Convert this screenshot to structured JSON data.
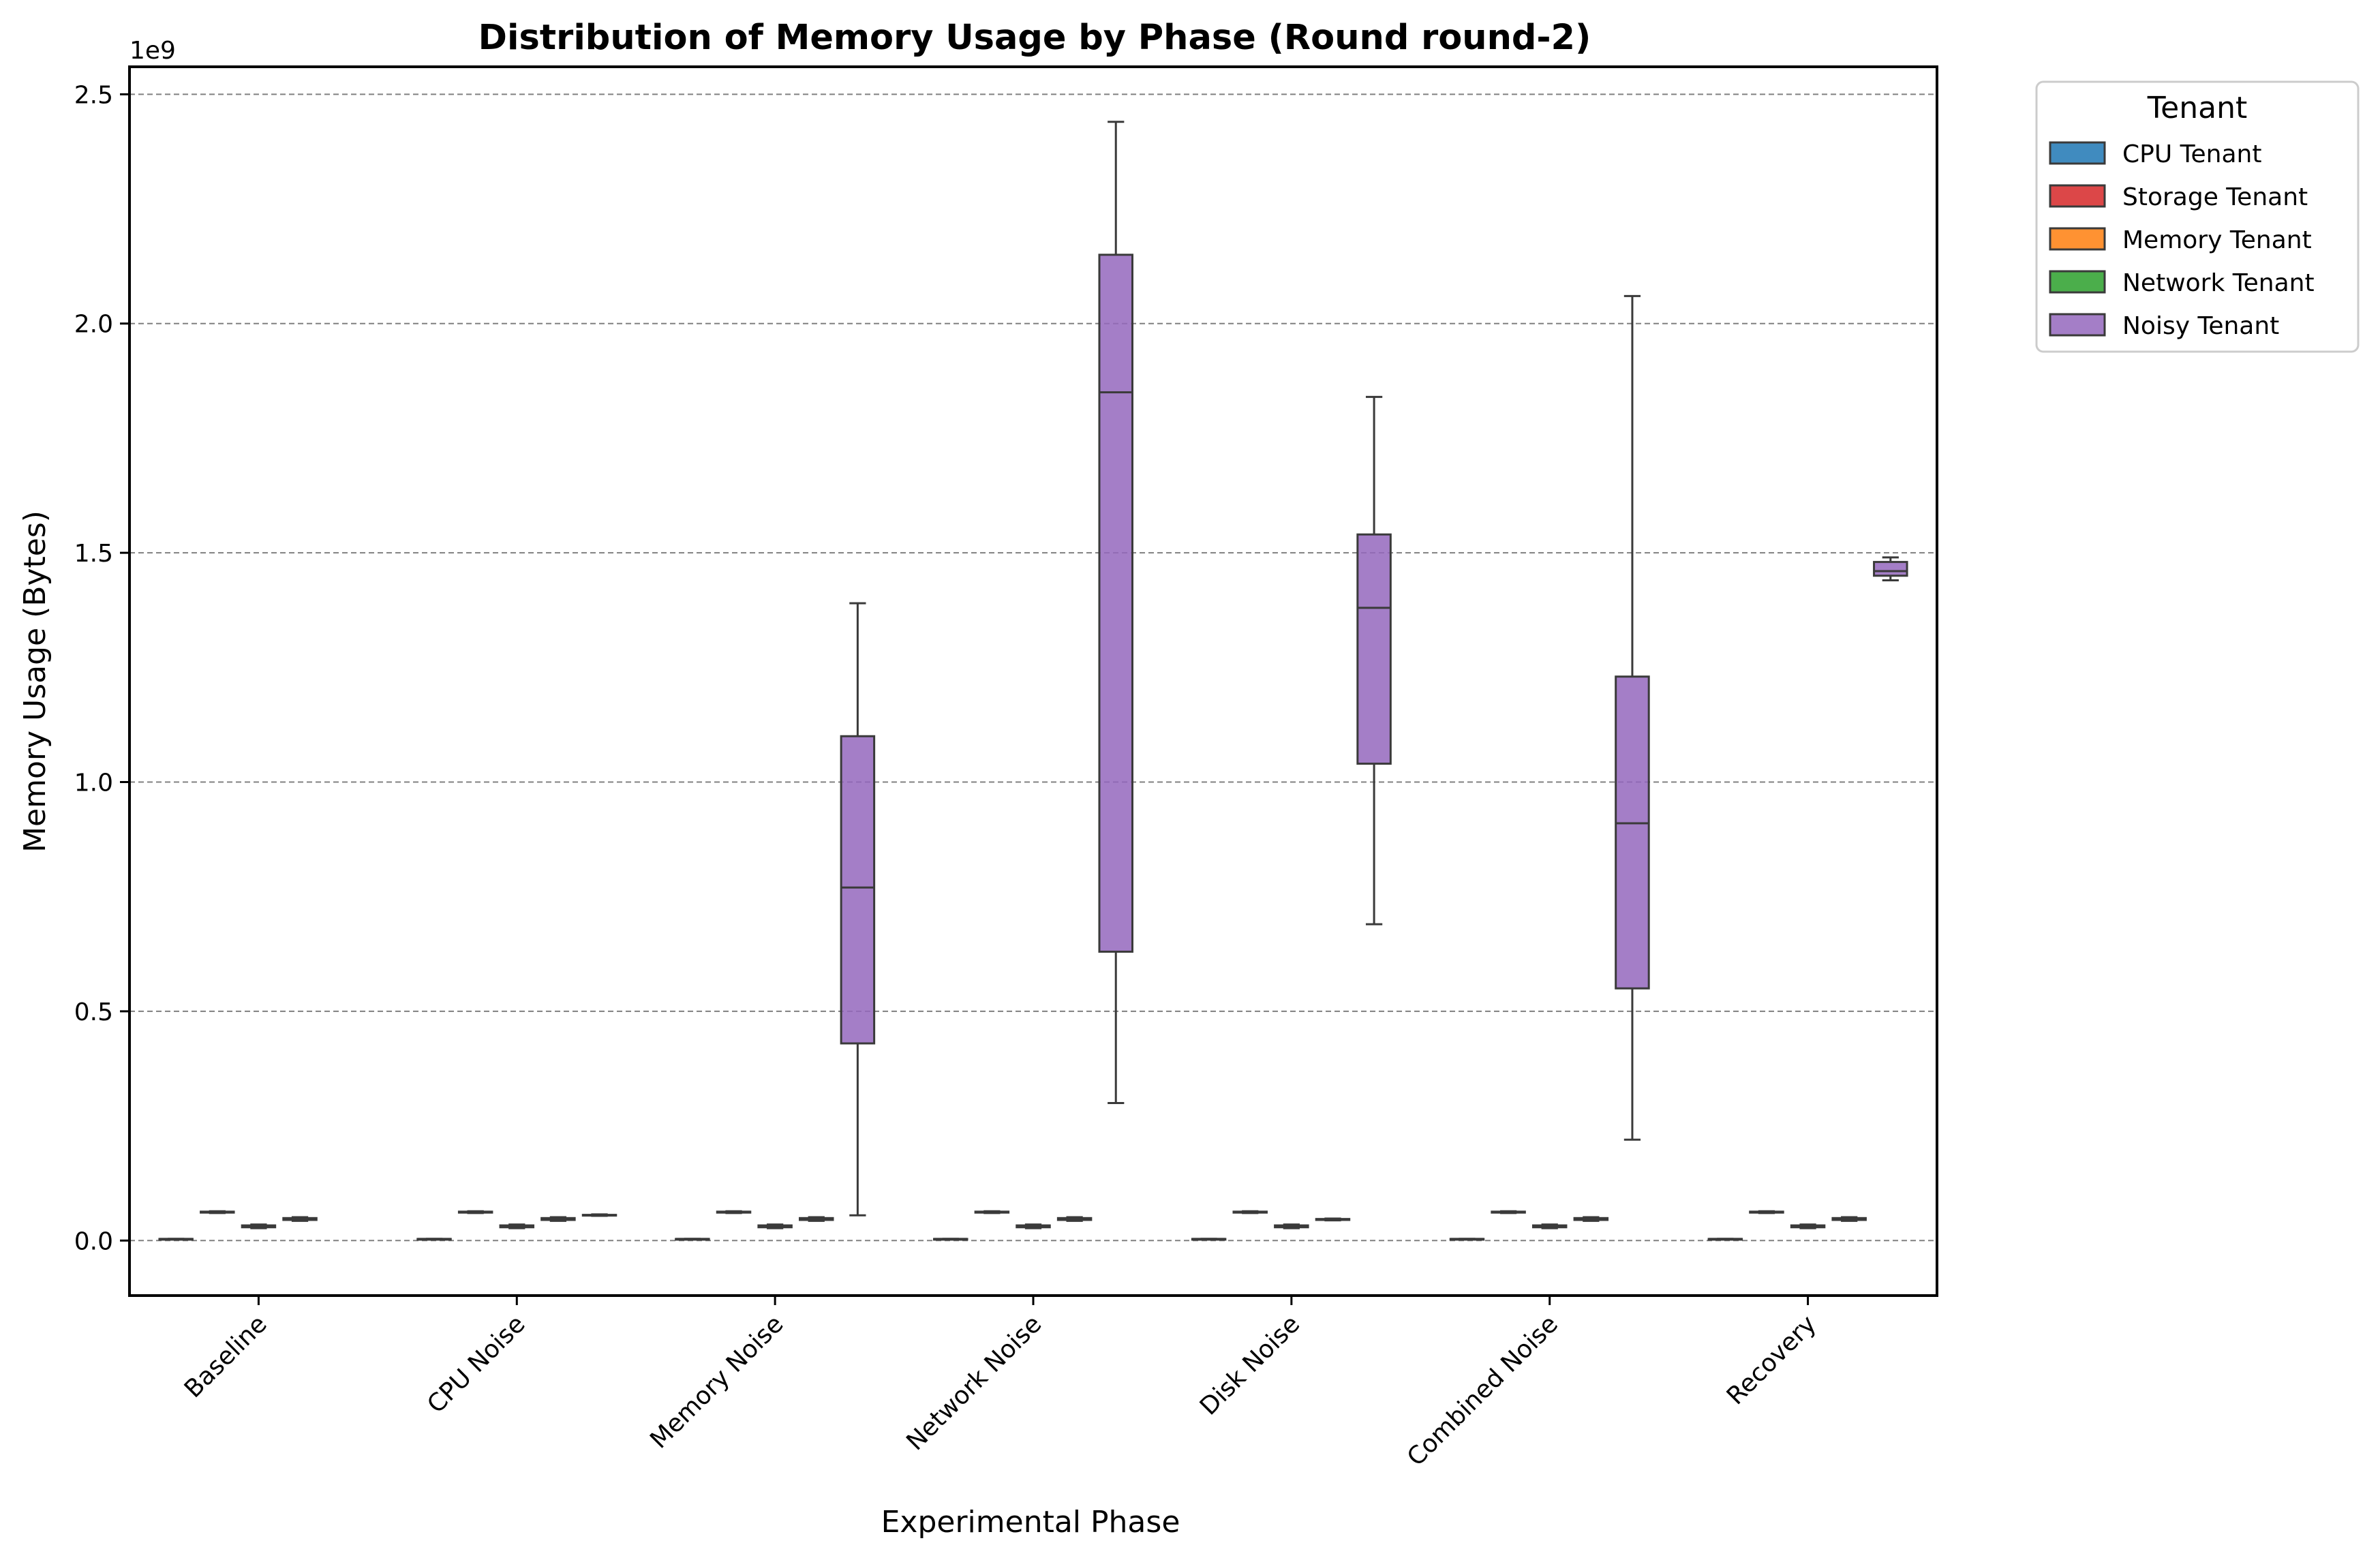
{
  "chart_data": {
    "type": "box",
    "title": "Distribution of Memory Usage by Phase (Round round-2)",
    "xlabel": "Experimental Phase",
    "ylabel": "Memory Usage (Bytes)",
    "y_multiplier_label": "1e9",
    "ylim": [
      -0.12,
      2.56
    ],
    "yticks": [
      0.0,
      0.5,
      1.0,
      1.5,
      2.0,
      2.5
    ],
    "ytick_labels": [
      "0.0",
      "0.5",
      "1.0",
      "1.5",
      "2.0",
      "2.5"
    ],
    "grid": "horizontal dashed",
    "categories": [
      "Baseline",
      "CPU Noise",
      "Memory Noise",
      "Network Noise",
      "Disk Noise",
      "Combined Noise",
      "Recovery"
    ],
    "legend": {
      "title": "Tenant",
      "placement": "outside upper-right"
    },
    "series": [
      {
        "name": "CPU Tenant",
        "color": "#1f77b4",
        "boxes": [
          {
            "whislo": 0.0035,
            "q1": 0.0035,
            "med": 0.0035,
            "q3": 0.0035,
            "whishi": 0.0035
          },
          {
            "whislo": 0.0035,
            "q1": 0.0035,
            "med": 0.0035,
            "q3": 0.0035,
            "whishi": 0.0035
          },
          {
            "whislo": 0.0035,
            "q1": 0.0035,
            "med": 0.0035,
            "q3": 0.0035,
            "whishi": 0.0035
          },
          {
            "whislo": 0.0035,
            "q1": 0.0035,
            "med": 0.0035,
            "q3": 0.0035,
            "whishi": 0.0035
          },
          {
            "whislo": 0.0035,
            "q1": 0.0035,
            "med": 0.0035,
            "q3": 0.0035,
            "whishi": 0.0035
          },
          {
            "whislo": 0.0035,
            "q1": 0.0035,
            "med": 0.0035,
            "q3": 0.0035,
            "whishi": 0.0035
          },
          {
            "whislo": 0.0035,
            "q1": 0.0035,
            "med": 0.0035,
            "q3": 0.0035,
            "whishi": 0.0035
          }
        ]
      },
      {
        "name": "Storage Tenant",
        "color": "#d62728",
        "boxes": [
          {
            "whislo": 0.06,
            "q1": 0.061,
            "med": 0.062,
            "q3": 0.063,
            "whishi": 0.064
          },
          {
            "whislo": 0.06,
            "q1": 0.061,
            "med": 0.062,
            "q3": 0.063,
            "whishi": 0.064
          },
          {
            "whislo": 0.06,
            "q1": 0.061,
            "med": 0.062,
            "q3": 0.063,
            "whishi": 0.064
          },
          {
            "whislo": 0.06,
            "q1": 0.061,
            "med": 0.062,
            "q3": 0.063,
            "whishi": 0.064
          },
          {
            "whislo": 0.06,
            "q1": 0.061,
            "med": 0.062,
            "q3": 0.063,
            "whishi": 0.064
          },
          {
            "whislo": 0.06,
            "q1": 0.061,
            "med": 0.062,
            "q3": 0.063,
            "whishi": 0.064
          },
          {
            "whislo": 0.06,
            "q1": 0.061,
            "med": 0.062,
            "q3": 0.063,
            "whishi": 0.064
          }
        ]
      },
      {
        "name": "Memory Tenant",
        "color": "#ff7f0e",
        "boxes": [
          {
            "whislo": 0.027,
            "q1": 0.029,
            "med": 0.031,
            "q3": 0.033,
            "whishi": 0.035
          },
          {
            "whislo": 0.027,
            "q1": 0.029,
            "med": 0.031,
            "q3": 0.033,
            "whishi": 0.035
          },
          {
            "whislo": 0.027,
            "q1": 0.029,
            "med": 0.031,
            "q3": 0.033,
            "whishi": 0.035
          },
          {
            "whislo": 0.027,
            "q1": 0.029,
            "med": 0.031,
            "q3": 0.033,
            "whishi": 0.035
          },
          {
            "whislo": 0.027,
            "q1": 0.029,
            "med": 0.031,
            "q3": 0.033,
            "whishi": 0.035
          },
          {
            "whislo": 0.027,
            "q1": 0.029,
            "med": 0.031,
            "q3": 0.033,
            "whishi": 0.035
          },
          {
            "whislo": 0.027,
            "q1": 0.029,
            "med": 0.031,
            "q3": 0.033,
            "whishi": 0.035
          }
        ]
      },
      {
        "name": "Network Tenant",
        "color": "#2ca02c",
        "boxes": [
          {
            "whislo": 0.043,
            "q1": 0.045,
            "med": 0.047,
            "q3": 0.049,
            "whishi": 0.051
          },
          {
            "whislo": 0.043,
            "q1": 0.045,
            "med": 0.047,
            "q3": 0.049,
            "whishi": 0.051
          },
          {
            "whislo": 0.043,
            "q1": 0.045,
            "med": 0.047,
            "q3": 0.049,
            "whishi": 0.051
          },
          {
            "whislo": 0.043,
            "q1": 0.045,
            "med": 0.047,
            "q3": 0.049,
            "whishi": 0.051
          },
          {
            "whislo": 0.044,
            "q1": 0.045,
            "med": 0.046,
            "q3": 0.047,
            "whishi": 0.048
          },
          {
            "whislo": 0.043,
            "q1": 0.045,
            "med": 0.047,
            "q3": 0.049,
            "whishi": 0.051
          },
          {
            "whislo": 0.043,
            "q1": 0.045,
            "med": 0.047,
            "q3": 0.049,
            "whishi": 0.051
          }
        ]
      },
      {
        "name": "Noisy Tenant",
        "color": "#9467bd",
        "boxes": [
          null,
          {
            "whislo": 0.054,
            "q1": 0.055,
            "med": 0.055,
            "q3": 0.056,
            "whishi": 0.057
          },
          {
            "whislo": 0.055,
            "q1": 0.43,
            "med": 0.77,
            "q3": 1.1,
            "whishi": 1.39
          },
          {
            "whislo": 0.3,
            "q1": 0.63,
            "med": 1.85,
            "q3": 2.15,
            "whishi": 2.44
          },
          {
            "whislo": 0.69,
            "q1": 1.04,
            "med": 1.38,
            "q3": 1.54,
            "whishi": 1.84
          },
          {
            "whislo": 0.22,
            "q1": 0.55,
            "med": 0.91,
            "q3": 1.23,
            "whishi": 2.06
          },
          {
            "whislo": 1.44,
            "q1": 1.45,
            "med": 1.46,
            "q3": 1.48,
            "whishi": 1.49
          }
        ]
      }
    ]
  }
}
